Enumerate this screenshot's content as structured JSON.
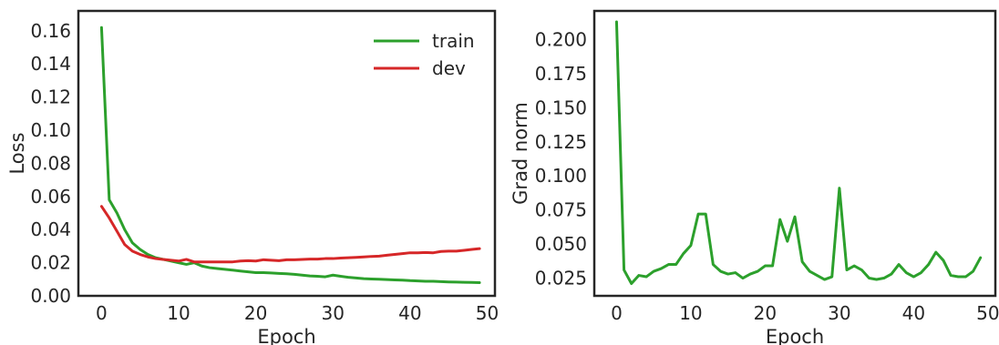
{
  "chart_data": [
    {
      "type": "line",
      "title": "",
      "xlabel": "Epoch",
      "ylabel": "Loss",
      "xlim": [
        -3,
        51
      ],
      "ylim": [
        0,
        0.172
      ],
      "xticks": [
        0,
        10,
        20,
        30,
        40,
        50
      ],
      "yticks": [
        0.0,
        0.02,
        0.04,
        0.06,
        0.08,
        0.1,
        0.12,
        0.14,
        0.16
      ],
      "ytick_labels": [
        "0.00",
        "0.02",
        "0.04",
        "0.06",
        "0.08",
        "0.10",
        "0.12",
        "0.14",
        "0.16"
      ],
      "grid": false,
      "legend": "top-right",
      "series": [
        {
          "name": "train",
          "color": "#2ca02c",
          "x": [
            0,
            1,
            2,
            3,
            4,
            5,
            6,
            7,
            8,
            9,
            10,
            11,
            12,
            13,
            14,
            15,
            16,
            17,
            18,
            19,
            20,
            21,
            22,
            23,
            24,
            25,
            26,
            27,
            28,
            29,
            30,
            31,
            32,
            33,
            34,
            35,
            36,
            37,
            38,
            39,
            40,
            41,
            42,
            43,
            44,
            45,
            46,
            47,
            48,
            49
          ],
          "y": [
            0.162,
            0.058,
            0.05,
            0.04,
            0.032,
            0.028,
            0.025,
            0.023,
            0.022,
            0.021,
            0.02,
            0.019,
            0.02,
            0.018,
            0.017,
            0.0165,
            0.016,
            0.0155,
            0.015,
            0.0145,
            0.014,
            0.014,
            0.0138,
            0.0135,
            0.0133,
            0.013,
            0.0125,
            0.012,
            0.0118,
            0.0115,
            0.0125,
            0.0118,
            0.0112,
            0.0108,
            0.0104,
            0.0102,
            0.01,
            0.0098,
            0.0096,
            0.0095,
            0.0092,
            0.009,
            0.0088,
            0.0088,
            0.0086,
            0.0084,
            0.0083,
            0.0082,
            0.0081,
            0.008
          ]
        },
        {
          "name": "dev",
          "color": "#d62728",
          "x": [
            0,
            1,
            2,
            3,
            4,
            5,
            6,
            7,
            8,
            9,
            10,
            11,
            12,
            13,
            14,
            15,
            16,
            17,
            18,
            19,
            20,
            21,
            22,
            23,
            24,
            25,
            26,
            27,
            28,
            29,
            30,
            31,
            32,
            33,
            34,
            35,
            36,
            37,
            38,
            39,
            40,
            41,
            42,
            43,
            44,
            45,
            46,
            47,
            48,
            49
          ],
          "y": [
            0.054,
            0.047,
            0.039,
            0.031,
            0.027,
            0.025,
            0.0235,
            0.0225,
            0.022,
            0.0215,
            0.021,
            0.022,
            0.0205,
            0.0205,
            0.0205,
            0.0205,
            0.0205,
            0.0205,
            0.021,
            0.0212,
            0.021,
            0.0218,
            0.0215,
            0.0212,
            0.0218,
            0.0218,
            0.022,
            0.0222,
            0.0222,
            0.0225,
            0.0225,
            0.0228,
            0.023,
            0.0232,
            0.0235,
            0.0238,
            0.024,
            0.0245,
            0.025,
            0.0255,
            0.026,
            0.026,
            0.0262,
            0.026,
            0.0268,
            0.027,
            0.027,
            0.0275,
            0.028,
            0.0285
          ]
        }
      ]
    },
    {
      "type": "line",
      "title": "",
      "xlabel": "Epoch",
      "ylabel": "Grad norm",
      "xlim": [
        -3,
        51
      ],
      "ylim": [
        0.012,
        0.221
      ],
      "xticks": [
        0,
        10,
        20,
        30,
        40,
        50
      ],
      "yticks": [
        0.025,
        0.05,
        0.075,
        0.1,
        0.125,
        0.15,
        0.175,
        0.2
      ],
      "ytick_labels": [
        "0.025",
        "0.050",
        "0.075",
        "0.100",
        "0.125",
        "0.150",
        "0.175",
        "0.200"
      ],
      "grid": false,
      "series": [
        {
          "color": "#2ca02c",
          "x": [
            0,
            1,
            2,
            3,
            4,
            5,
            6,
            7,
            8,
            9,
            10,
            11,
            12,
            13,
            14,
            15,
            16,
            17,
            18,
            19,
            20,
            21,
            22,
            23,
            24,
            25,
            26,
            27,
            28,
            29,
            30,
            31,
            32,
            33,
            34,
            35,
            36,
            37,
            38,
            39,
            40,
            41,
            42,
            43,
            44,
            45,
            46,
            47,
            48,
            49
          ],
          "y": [
            0.213,
            0.031,
            0.021,
            0.027,
            0.026,
            0.03,
            0.032,
            0.035,
            0.035,
            0.043,
            0.049,
            0.072,
            0.072,
            0.035,
            0.03,
            0.028,
            0.029,
            0.025,
            0.028,
            0.03,
            0.034,
            0.034,
            0.068,
            0.052,
            0.07,
            0.037,
            0.03,
            0.027,
            0.024,
            0.026,
            0.091,
            0.031,
            0.034,
            0.031,
            0.025,
            0.024,
            0.025,
            0.028,
            0.035,
            0.029,
            0.026,
            0.029,
            0.035,
            0.044,
            0.038,
            0.027,
            0.026,
            0.026,
            0.03,
            0.04
          ]
        }
      ]
    }
  ]
}
